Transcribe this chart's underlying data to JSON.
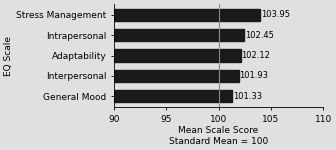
{
  "categories": [
    "General Mood",
    "Interpersonal",
    "Adaptability",
    "Intrapersonal",
    "Stress Management"
  ],
  "values": [
    101.33,
    101.93,
    102.12,
    102.45,
    103.95
  ],
  "value_labels": [
    "101.33",
    "101.93",
    "102.12",
    "102.45",
    "103.95"
  ],
  "bar_color": "#1a1a1a",
  "xlabel_line1": "Mean Scale Score",
  "xlabel_line2": "Standard Mean = 100",
  "ylabel": "EQ Scale",
  "xlim": [
    90,
    110
  ],
  "xticks": [
    90,
    95,
    100,
    105,
    110
  ],
  "reference_line": 100,
  "background_color": "#e0e0e0",
  "bar_height": 0.6,
  "fontsize_ticks": 6.5,
  "fontsize_xlabel": 6.5,
  "fontsize_ylabel": 6.5,
  "fontsize_values": 6.0
}
